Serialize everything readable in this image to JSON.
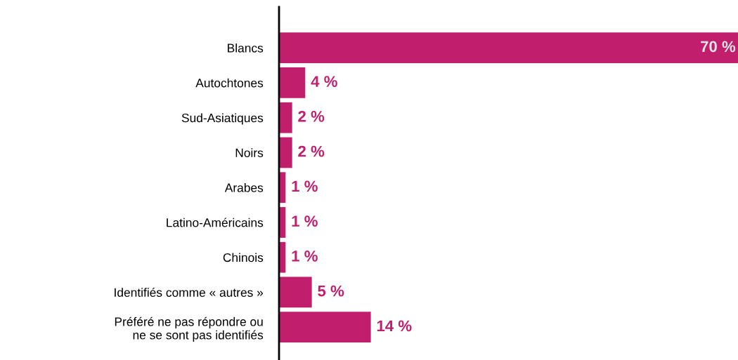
{
  "chart_data": {
    "type": "bar",
    "orientation": "horizontal",
    "categories": [
      "Blancs",
      "Autochtones",
      "Sud-Asiatiques",
      "Noirs",
      "Arabes",
      "Latino-Américains",
      "Chinois",
      "Identifiés comme « autres »",
      "Préféré ne pas répondre ou\nne se sont pas identifiés"
    ],
    "values": [
      70,
      4,
      2,
      2,
      1,
      1,
      1,
      5,
      14
    ],
    "value_labels": [
      "70 %",
      "4 %",
      "2 %",
      "2 %",
      "1 %",
      "1 %",
      "1 %",
      "5 %",
      "14 %"
    ],
    "color": "#c11f6e",
    "tick_labels": "y",
    "grid": false,
    "legend": false
  }
}
